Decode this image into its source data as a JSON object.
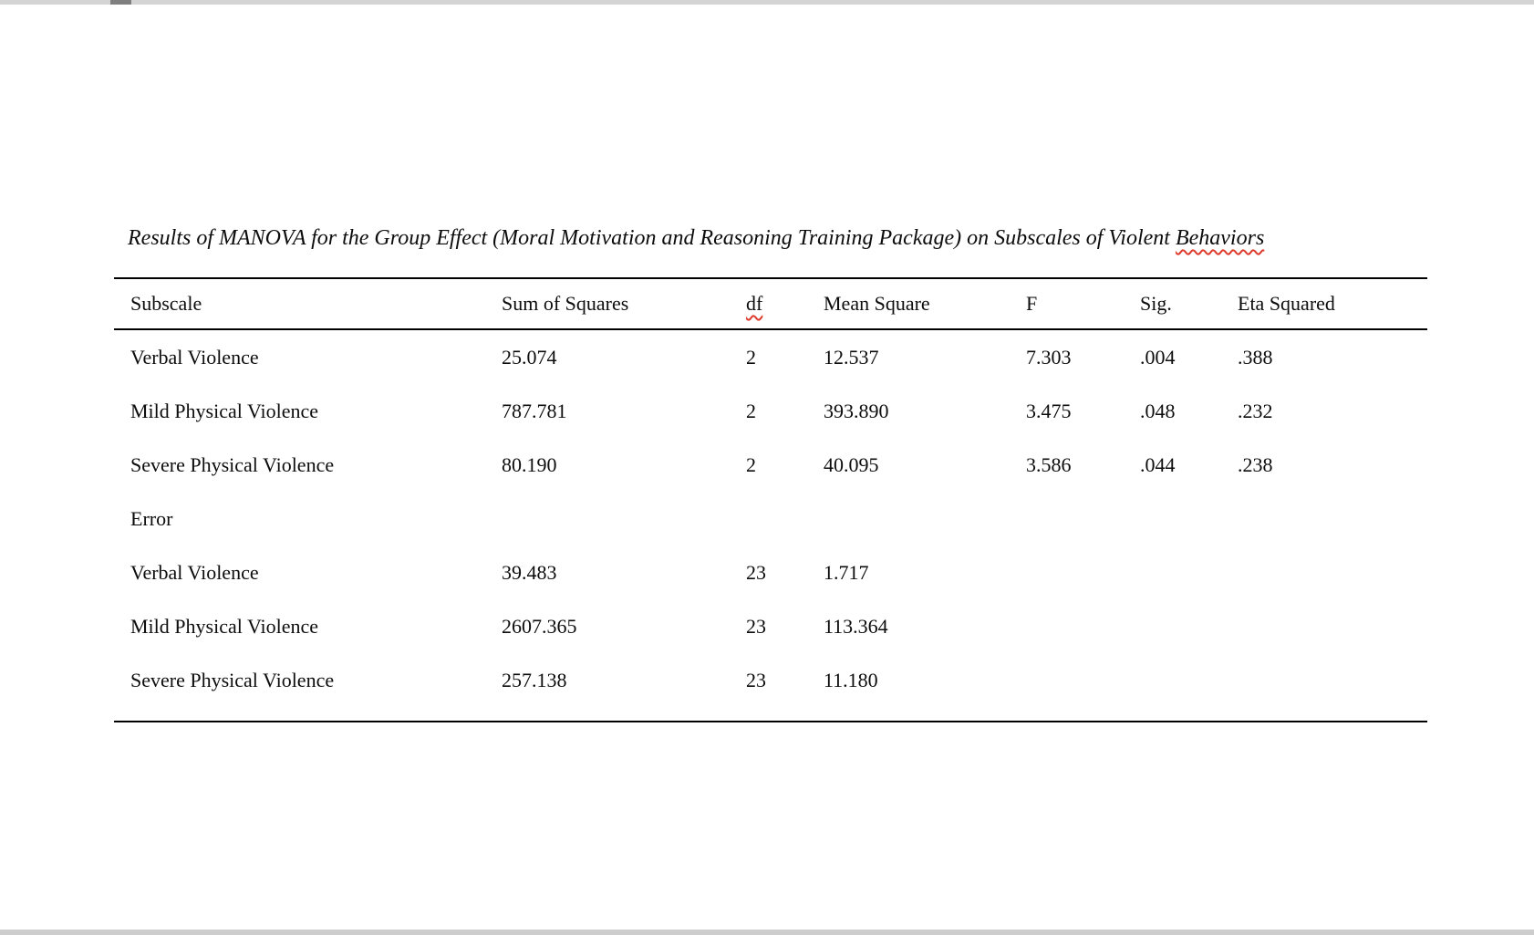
{
  "window": {
    "top_strip_color": "#d4d4d4",
    "top_thumb_color": "#7f7f7f",
    "bottom_strip_color": "#cdcdcd",
    "spellcheck_color": "#de3b2d"
  },
  "caption": {
    "text": "Results of MANOVA for the Group Effect (Moral Motivation and Reasoning Training Package) on Subscales of Violent ",
    "flagged_word": "Behaviors"
  },
  "table": {
    "headers": [
      "Subscale",
      "Sum of Squares",
      "df",
      "Mean Square",
      "F",
      "Sig.",
      "Eta Squared"
    ],
    "rows": [
      [
        "Verbal Violence",
        "25.074",
        "2",
        "12.537",
        "7.303",
        ".004",
        ".388"
      ],
      [
        "Mild Physical Violence",
        "787.781",
        "2",
        "393.890",
        "3.475",
        ".048",
        ".232"
      ],
      [
        "Severe Physical Violence",
        "80.190",
        "2",
        "40.095",
        "3.586",
        ".044",
        ".238"
      ],
      [
        "Error",
        "",
        "",
        "",
        "",
        "",
        ""
      ],
      [
        "Verbal Violence",
        "39.483",
        "23",
        "1.717",
        "",
        "",
        ""
      ],
      [
        "Mild Physical Violence",
        "2607.365",
        "23",
        "113.364",
        "",
        "",
        ""
      ],
      [
        "Severe Physical Violence",
        "257.138",
        "23",
        "11.180",
        "",
        "",
        ""
      ]
    ]
  }
}
